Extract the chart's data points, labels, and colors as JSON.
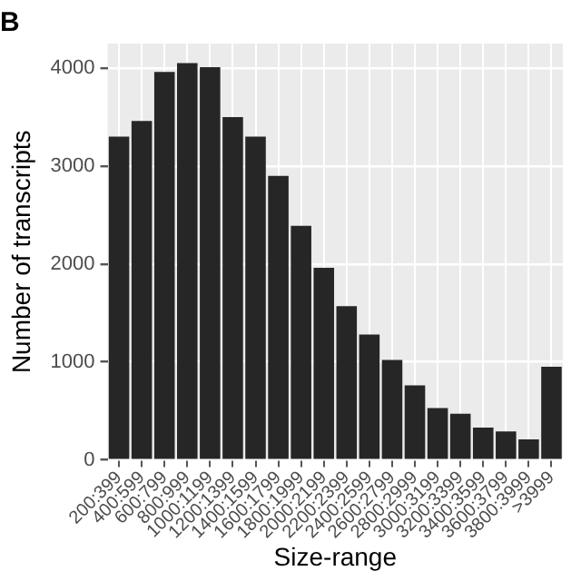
{
  "chart_data": {
    "type": "bar",
    "title": "B",
    "xlabel": "Size-range",
    "ylabel": "Number of transcripts",
    "categories": [
      "200:399",
      "400:599",
      "600:799",
      "800:999",
      "1000:1199",
      "1200:1399",
      "1400:1599",
      "1600:1799",
      "1800:1999",
      "2000:2199",
      "2200:2399",
      "2400:2599",
      "2600:2799",
      "2800:2999",
      "3000:3199",
      "3200:3399",
      "3400:3599",
      "3600:3799",
      "3800:3999",
      ">3999"
    ],
    "values": [
      3300,
      3460,
      3960,
      4050,
      4010,
      3500,
      3300,
      2900,
      2390,
      1960,
      1570,
      1280,
      1020,
      760,
      530,
      470,
      330,
      290,
      210,
      950
    ],
    "color": "#262626",
    "ylim": [
      0,
      4250
    ],
    "yticks": [
      0,
      1000,
      2000,
      3000,
      4000
    ],
    "grid": true,
    "legend": false
  }
}
